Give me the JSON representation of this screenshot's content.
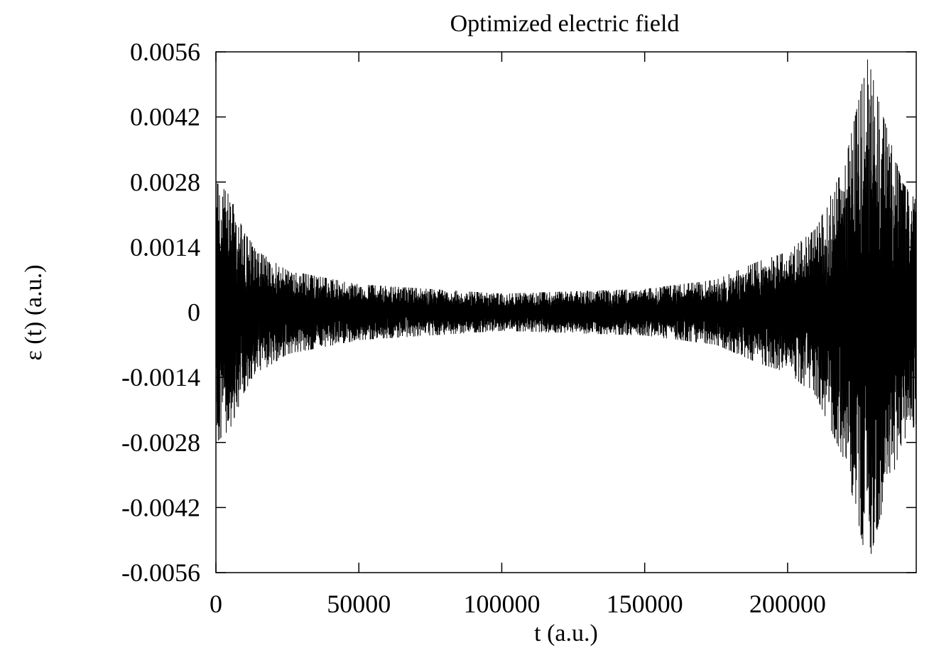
{
  "chart_data": {
    "type": "line",
    "title": "Optimized electric field",
    "xlabel": "t (a.u.)",
    "ylabel": "ε (t) (a.u.)",
    "xlim": [
      0,
      245000
    ],
    "ylim": [
      -0.0056,
      0.0056
    ],
    "xticks": [
      0,
      50000,
      100000,
      150000,
      200000
    ],
    "xtick_labels": [
      "0",
      "50000",
      "100000",
      "150000",
      "200000"
    ],
    "yticks": [
      0.0056,
      0.0042,
      0.0028,
      0.0014,
      0,
      -0.0014,
      -0.0028,
      -0.0042,
      -0.0056
    ],
    "ytick_labels": [
      "0.0056",
      "0.0042",
      "0.0028",
      "0.0014",
      "0",
      "-0.0014",
      "-0.0028",
      "-0.0042",
      "-0.0056"
    ],
    "grid": false,
    "legend": "none",
    "line_color": "#000000",
    "series": [
      {
        "envelope_t": [
          0,
          2000,
          5000,
          10000,
          15000,
          25000,
          50000,
          100000,
          150000,
          175000,
          190000,
          200000,
          210000,
          220000,
          225000,
          228000,
          232000,
          236000,
          240000,
          245000
        ],
        "envelope_amplitude": [
          0.0028,
          0.0027,
          0.0025,
          0.0017,
          0.0013,
          0.0009,
          0.0006,
          0.0004,
          0.0005,
          0.0007,
          0.0011,
          0.0013,
          0.0018,
          0.0032,
          0.0046,
          0.0055,
          0.0045,
          0.0037,
          0.0028,
          0.0024
        ]
      }
    ]
  }
}
